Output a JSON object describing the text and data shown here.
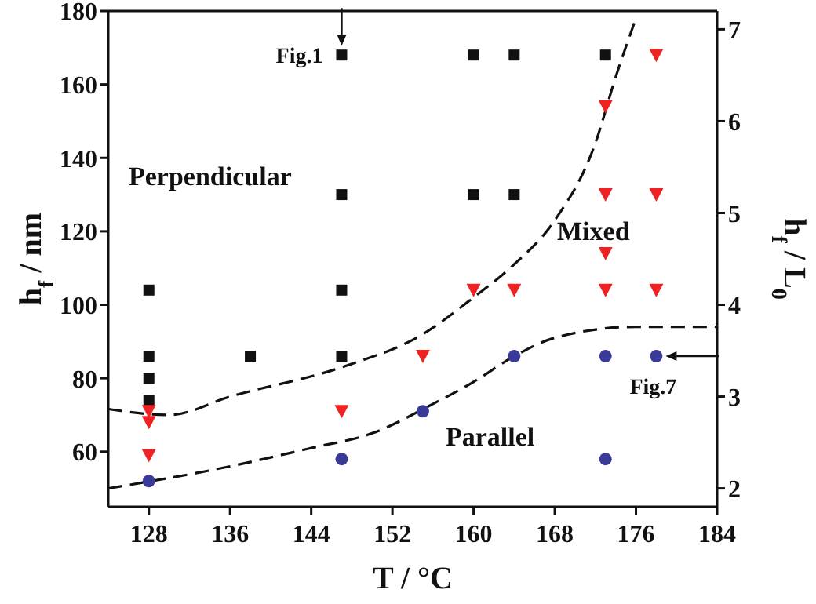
{
  "chart_data": {
    "type": "scatter",
    "xlabel": "T / °C",
    "ylabel": "h$_{f}$ / nm",
    "y2label": "h$_{f}$ / L$_{0}$",
    "xlim": [
      124,
      184
    ],
    "xticks": [
      128,
      136,
      144,
      152,
      160,
      168,
      176,
      184
    ],
    "ylim": [
      45,
      180
    ],
    "yticks": [
      60,
      80,
      100,
      120,
      140,
      160,
      180
    ],
    "y2lim": [
      1.8,
      7.2
    ],
    "y2ticks": [
      2,
      3,
      4,
      5,
      6,
      7
    ],
    "series": [
      {
        "marker": "square",
        "color": "#111111",
        "x": [
          128,
          128,
          128,
          128,
          138,
          147,
          147,
          147,
          147,
          160,
          160,
          164,
          164,
          173
        ],
        "values": [
          104,
          86,
          80,
          74,
          86,
          104,
          86,
          130,
          168,
          168,
          130,
          168,
          130,
          168
        ]
      },
      {
        "marker": "triangle",
        "color": "#ee2222",
        "x": [
          128,
          128,
          128,
          147,
          155,
          160,
          164,
          173,
          173,
          173,
          173,
          178,
          178,
          178
        ],
        "values": [
          71,
          68,
          59,
          71,
          86,
          104,
          104,
          104,
          114,
          130,
          154,
          104,
          130,
          168
        ]
      },
      {
        "marker": "circle",
        "color": "#3a3a99",
        "x": [
          128,
          147,
          155,
          164,
          173,
          173,
          178
        ],
        "values": [
          52,
          58,
          71,
          86,
          86,
          58,
          86
        ]
      },
      {
        "type": "line",
        "line_style": "dashed",
        "color": "#111111",
        "x": [
          124,
          130,
          136,
          147,
          155,
          160,
          164,
          168,
          172,
          174,
          176
        ],
        "values": [
          71.6,
          70,
          75,
          83,
          92,
          102,
          111,
          123,
          144,
          162,
          178
        ]
      },
      {
        "type": "line",
        "line_style": "dashed",
        "color": "#111111",
        "x": [
          124,
          136,
          144,
          150,
          156,
          160,
          164,
          168,
          176,
          184
        ],
        "values": [
          50,
          56,
          61,
          65,
          73,
          79,
          86,
          91,
          94,
          94
        ]
      }
    ],
    "annotations": [
      "Perpendicular",
      "Mixed",
      "Parallel",
      {
        "text": "Fig.1",
        "x": 147,
        "y": 168
      },
      {
        "text": "Fig.7",
        "x": 178,
        "y": 86
      }
    ]
  }
}
